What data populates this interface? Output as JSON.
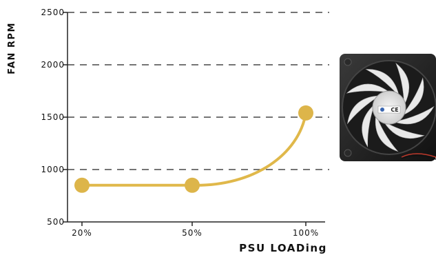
{
  "chart_data": {
    "type": "line",
    "title": "",
    "xlabel": "PSU LOADing",
    "ylabel": "FAN RPM",
    "categories": [
      "20%",
      "50%",
      "100%"
    ],
    "x": [
      20,
      50,
      100
    ],
    "series": [
      {
        "values": [
          850,
          850,
          1540
        ]
      }
    ],
    "ylim": [
      500,
      2500
    ],
    "yticks": [
      500,
      1000,
      1500,
      2000,
      2500
    ],
    "grid": "dashed horizontal",
    "curve": "smooth",
    "colors": {
      "line": "#e0b84a",
      "marker": "#ddb54a",
      "grid": "#222222",
      "axis": "#222222"
    }
  },
  "image": {
    "icon": "cooling-fan-icon",
    "badge_text": "CE"
  }
}
